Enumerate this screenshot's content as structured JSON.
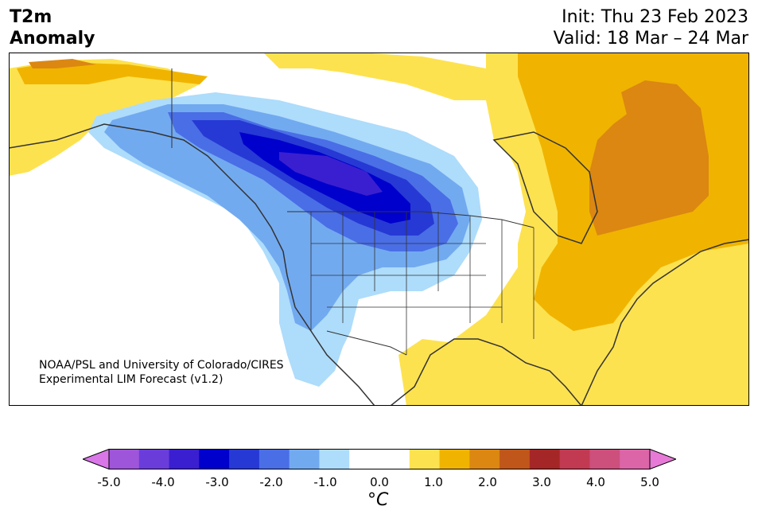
{
  "title": {
    "line1": "T2m",
    "line2": "Anomaly"
  },
  "dates": {
    "init": "Init: Thu 23 Feb 2023",
    "valid": "Valid: 18 Mar – 24 Mar"
  },
  "credit": {
    "line1": "NOAA/PSL and University of Colorado/CIRES",
    "line2": "Experimental LIM Forecast (v1.2)"
  },
  "colorbar": {
    "tick_labels": [
      "-5.0",
      "-4.0",
      "-3.0",
      "-2.0",
      "-1.0",
      "0.0",
      "1.0",
      "2.0",
      "3.0",
      "4.0",
      "5.0"
    ],
    "unit": "°C",
    "colors": [
      "#d977e8",
      "#9e55d9",
      "#6a3ddb",
      "#3a1fd0",
      "#0000cc",
      "#2639d4",
      "#4a6ee6",
      "#72aaf0",
      "#aedcfb",
      "#ffffff",
      "#ffffff",
      "#fde24f",
      "#f0b400",
      "#db8712",
      "#c0561a",
      "#a52626",
      "#c23a52",
      "#cd4f7c",
      "#dc65a8",
      "#e77ad6"
    ]
  }
}
